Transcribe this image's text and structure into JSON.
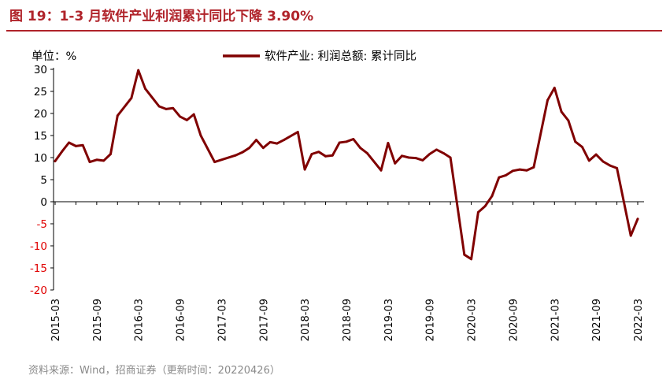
{
  "title": "图 19：1-3 月软件产业利润累计同比下降 3.90%",
  "source": "资料来源：Wind，招商证券（更新时间：20220426）",
  "colors": {
    "accent": "#b0232a",
    "series": "#800000",
    "negative_tick": "#e00000"
  },
  "chart_data": {
    "type": "line",
    "unit_label": "单位：%",
    "legend": "top-center",
    "grid": false,
    "ylim": [
      -20,
      30
    ],
    "yticks": [
      "30",
      "25",
      "20",
      "15",
      "10",
      "5",
      "0",
      "-5",
      "-10",
      "-15",
      "-20"
    ],
    "xtick_labels": [
      "2015-03",
      "2015-09",
      "2016-03",
      "2016-09",
      "2017-03",
      "2017-09",
      "2018-03",
      "2018-09",
      "2019-03",
      "2019-09",
      "2020-03",
      "2020-09",
      "2021-03",
      "2021-09",
      "2022-03"
    ],
    "series": [
      {
        "name": "软件产业: 利润总额: 累计同比",
        "x": [
          "2015-03",
          "2015-04",
          "2015-05",
          "2015-06",
          "2015-07",
          "2015-08",
          "2015-09",
          "2015-10",
          "2015-11",
          "2015-12",
          "2016-02",
          "2016-03",
          "2016-04",
          "2016-05",
          "2016-06",
          "2016-07",
          "2016-08",
          "2016-09",
          "2016-10",
          "2016-11",
          "2016-12",
          "2017-02",
          "2017-05",
          "2017-06",
          "2017-07",
          "2017-08",
          "2017-09",
          "2017-10",
          "2017-11",
          "2017-12",
          "2018-02",
          "2018-03",
          "2018-04",
          "2018-05",
          "2018-06",
          "2018-07",
          "2018-08",
          "2018-09",
          "2018-10",
          "2018-11",
          "2018-12",
          "2019-02",
          "2019-03",
          "2019-04",
          "2019-05",
          "2019-06",
          "2019-07",
          "2019-08",
          "2019-09",
          "2019-10",
          "2019-11",
          "2019-12",
          "2020-02",
          "2020-03",
          "2020-04",
          "2020-05",
          "2020-06",
          "2020-07",
          "2020-08",
          "2020-09",
          "2020-10",
          "2020-11",
          "2020-12",
          "2021-02",
          "2021-03",
          "2021-04",
          "2021-05",
          "2021-06",
          "2021-07",
          "2021-08",
          "2021-09",
          "2021-10",
          "2021-11",
          "2021-12",
          "2022-02",
          "2022-03"
        ],
        "values": [
          9.2,
          11.4,
          13.4,
          12.6,
          12.8,
          9.0,
          9.5,
          9.3,
          10.8,
          19.5,
          23.5,
          29.8,
          25.6,
          23.6,
          21.6,
          21.0,
          21.2,
          19.3,
          18.5,
          19.8,
          15.0,
          9.0,
          10.5,
          11.2,
          12.2,
          14.0,
          12.2,
          13.5,
          13.2,
          14.0,
          15.8,
          7.3,
          10.8,
          11.3,
          10.3,
          10.5,
          13.4,
          13.6,
          14.2,
          12.2,
          11.0,
          7.1,
          13.3,
          8.7,
          10.4,
          10.0,
          9.9,
          9.4,
          10.8,
          11.8,
          11.0,
          10.0,
          -12.0,
          -13.0,
          -2.4,
          -1.0,
          1.3,
          5.5,
          6.0,
          7.0,
          7.3,
          7.1,
          7.8,
          23.0,
          25.8,
          20.4,
          18.4,
          13.6,
          12.4,
          9.3,
          10.7,
          9.1,
          8.2,
          7.6,
          -7.7,
          -3.9
        ]
      }
    ]
  }
}
